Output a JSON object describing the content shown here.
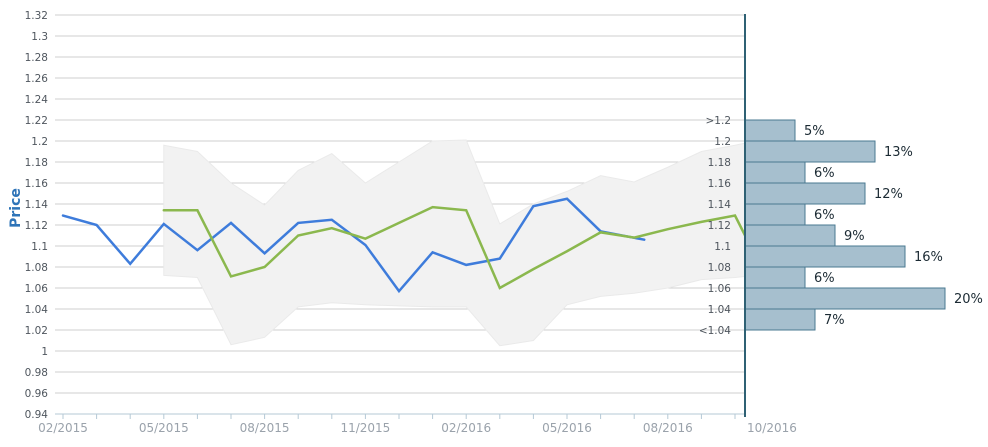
{
  "colors": {
    "price_line": "#3e7cdb",
    "forecast_line": "#8bb84e",
    "band_fill": "#f2f2f2",
    "band_edge": "#eaeaea",
    "grid_line": "#cfcfcf",
    "axis_line": "#b5c9d6",
    "y_label": "#4f565e",
    "x_label": "#9aa2ab",
    "bin_label": "#4f565e",
    "pct_label": "#1b2a33",
    "bar_fill": "#a6bfce",
    "bar_border": "#4a7890",
    "separator": "#2f6174",
    "y_title": "#2e74b8"
  },
  "chart_data": [
    {
      "type": "line",
      "title": "",
      "ylabel": "Price",
      "ylim": [
        0.94,
        1.32
      ],
      "ytick_step": 0.02,
      "grid": true,
      "legend": false,
      "ytick_labels": [
        "1.32",
        "1.3",
        "1.28",
        "1.26",
        "1.24",
        "1.22",
        "1.2",
        "1.18",
        "1.16",
        "1.14",
        "1.12",
        "1.1",
        "1.08",
        "1.06",
        "1.04",
        "1.02",
        "1",
        "0.98",
        "0.96",
        "0.94"
      ],
      "x_unit": "month",
      "x_range": [
        "02/2015",
        "10/2016"
      ],
      "xtick_labels": [
        {
          "label": "02/2015",
          "month": 0
        },
        {
          "label": "05/2015",
          "month": 3
        },
        {
          "label": "08/2015",
          "month": 6
        },
        {
          "label": "11/2015",
          "month": 9
        },
        {
          "label": "02/2016",
          "month": 12
        },
        {
          "label": "05/2016",
          "month": 15
        },
        {
          "label": "08/2016",
          "month": 18
        },
        {
          "label": "10/2016",
          "month": 20,
          "anchor": "start"
        }
      ],
      "series": [
        {
          "name": "price-history",
          "color": "#3e7cdb",
          "x": [
            0,
            1,
            2,
            3,
            4,
            5,
            6,
            7,
            8,
            9,
            10,
            11,
            12,
            13,
            14,
            15,
            16,
            17.3
          ],
          "values": [
            1.129,
            1.12,
            1.083,
            1.121,
            1.096,
            1.122,
            1.093,
            1.122,
            1.125,
            1.101,
            1.057,
            1.094,
            1.082,
            1.088,
            1.138,
            1.145,
            1.114,
            1.106
          ]
        },
        {
          "name": "forecast-trend",
          "color": "#8bb84e",
          "x": [
            3,
            4,
            5,
            6,
            7,
            8,
            9,
            10,
            11,
            12,
            13,
            14,
            15,
            16,
            17,
            18,
            19,
            20,
            20.3
          ],
          "values": [
            1.134,
            1.134,
            1.071,
            1.08,
            1.11,
            1.117,
            1.107,
            1.122,
            1.137,
            1.134,
            1.06,
            1.078,
            1.095,
            1.113,
            1.108,
            1.116,
            1.123,
            1.129,
            1.11
          ]
        }
      ],
      "band": {
        "name": "forecast-range",
        "x": [
          3,
          4,
          5,
          6,
          7,
          8,
          9,
          10,
          11,
          12,
          13,
          14,
          15,
          16,
          17,
          18,
          19,
          20,
          20.3
        ],
        "upper": [
          1.196,
          1.19,
          1.16,
          1.139,
          1.172,
          1.188,
          1.16,
          1.18,
          1.2,
          1.201,
          1.121,
          1.14,
          1.152,
          1.167,
          1.161,
          1.175,
          1.19,
          1.196,
          1.198
        ],
        "lower": [
          1.072,
          1.07,
          1.006,
          1.013,
          1.042,
          1.046,
          1.044,
          1.043,
          1.042,
          1.042,
          1.005,
          1.01,
          1.044,
          1.052,
          1.055,
          1.06,
          1.068,
          1.07,
          1.071
        ]
      }
    },
    {
      "type": "bar",
      "orientation": "horizontal",
      "title": "",
      "bin_edge_labels": [
        ">1.2",
        "1.2",
        "1.18",
        "1.16",
        "1.14",
        "1.12",
        "1.1",
        "1.08",
        "1.06",
        "1.04",
        "<1.04"
      ],
      "bin_edge_values": [
        1.22,
        1.2,
        1.18,
        1.16,
        1.14,
        1.12,
        1.1,
        1.08,
        1.06,
        1.04,
        1.02
      ],
      "values": [
        5,
        13,
        6,
        12,
        6,
        9,
        16,
        6,
        20,
        7
      ],
      "value_labels": [
        "5%",
        "13%",
        "6%",
        "12%",
        "6%",
        "9%",
        "16%",
        "6%",
        "20%",
        "7%"
      ],
      "unit": "%"
    }
  ]
}
